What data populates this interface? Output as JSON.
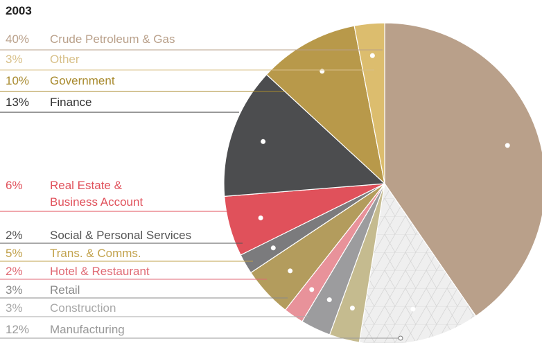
{
  "chart_data": {
    "type": "pie",
    "title": "2003",
    "categories": [
      "Crude Petroleum & Gas",
      "Manufacturing",
      "Construction",
      "Retail",
      "Hotel & Restaurant",
      "Trans. & Comms.",
      "Social & Personal Services",
      "Real Estate & Business Account",
      "Finance",
      "Government",
      "Other"
    ],
    "values": [
      40,
      12,
      3,
      3,
      2,
      5,
      2,
      6,
      13,
      10,
      3
    ],
    "value_labels": [
      "40%",
      "12%",
      "3%",
      "3%",
      "2%",
      "5%",
      "2%",
      "6%",
      "13%",
      "10%",
      "3%"
    ],
    "colors": [
      "#b9a08a",
      "#efefef",
      "#c5bb8f",
      "#9c9c9e",
      "#e8929a",
      "#b39c5d",
      "#7b7b7d",
      "#e0515b",
      "#4c4d4f",
      "#b8994a",
      "#dcbd6e"
    ],
    "label_colors": [
      "#b9a08a",
      "#999999",
      "#a8a8a8",
      "#8a8a8a",
      "#e06a74",
      "#c2a24c",
      "#555555",
      "#e0515b",
      "#333333",
      "#a88a2e",
      "#d8c089"
    ]
  }
}
